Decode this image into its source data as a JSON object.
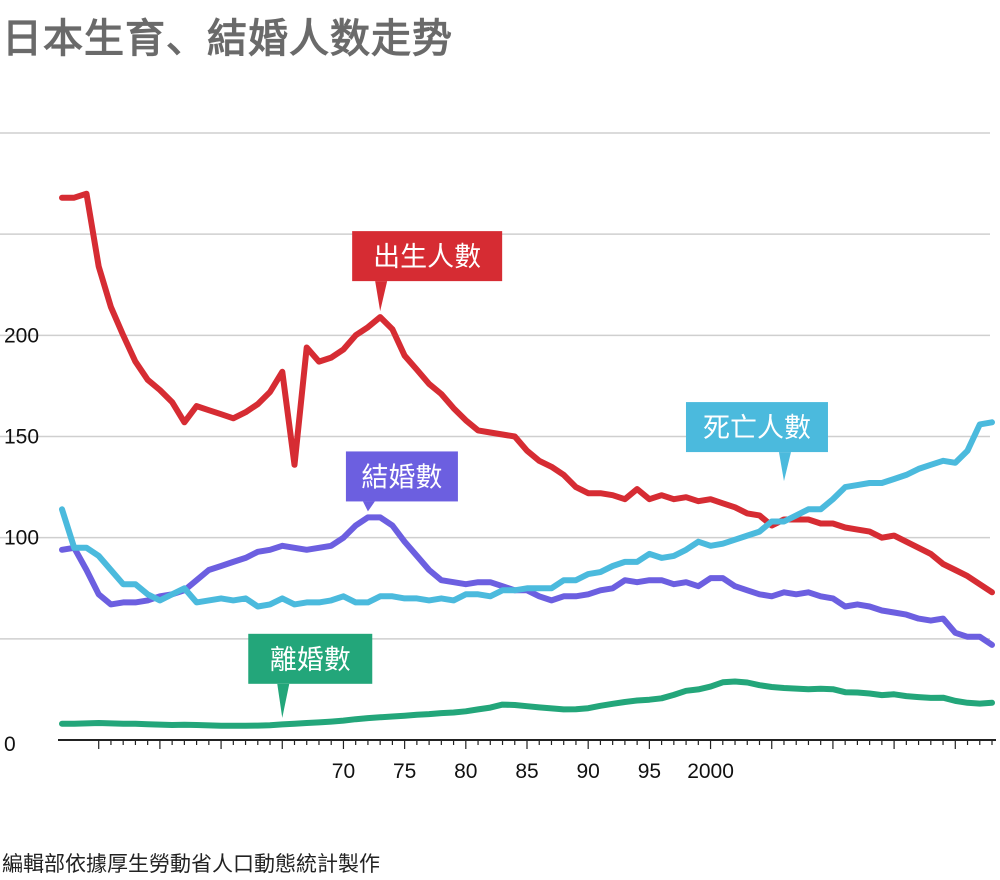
{
  "title": "日本生育、結婚人数走势",
  "source_note": "編輯部依據厚生勞動省人口動態統計製作",
  "chart_data": {
    "type": "line",
    "title": "日本生育、結婚人数走势",
    "xlabel": "",
    "ylabel": "",
    "xlim": [
      1947,
      2023
    ],
    "ylim": [
      0,
      300
    ],
    "y_ticks": [
      0,
      100,
      150,
      200
    ],
    "y_gridlines": [
      50,
      100,
      150,
      200,
      250,
      300
    ],
    "x_ticks": [
      {
        "value": 1950,
        "label": ""
      },
      {
        "value": 1955,
        "label": ""
      },
      {
        "value": 1960,
        "label": ""
      },
      {
        "value": 1965,
        "label": ""
      },
      {
        "value": 1970,
        "label": "70"
      },
      {
        "value": 1975,
        "label": "75"
      },
      {
        "value": 1980,
        "label": "80"
      },
      {
        "value": 1985,
        "label": "85"
      },
      {
        "value": 1990,
        "label": "90"
      },
      {
        "value": 1995,
        "label": "95"
      },
      {
        "value": 2000,
        "label": "2000"
      },
      {
        "value": 2005,
        "label": ""
      },
      {
        "value": 2010,
        "label": ""
      },
      {
        "value": 2015,
        "label": ""
      },
      {
        "value": 2020,
        "label": ""
      }
    ],
    "grid": true,
    "legend": "inline-labels",
    "series": [
      {
        "name": "出生人數",
        "color": "#d62c33",
        "label_anchor": [
          1973,
          209
        ],
        "x": [
          1947,
          1948,
          1949,
          1950,
          1951,
          1952,
          1953,
          1954,
          1955,
          1956,
          1957,
          1958,
          1959,
          1960,
          1961,
          1962,
          1963,
          1964,
          1965,
          1966,
          1967,
          1968,
          1969,
          1970,
          1971,
          1972,
          1973,
          1974,
          1975,
          1976,
          1977,
          1978,
          1979,
          1980,
          1981,
          1982,
          1983,
          1984,
          1985,
          1986,
          1987,
          1988,
          1989,
          1990,
          1991,
          1992,
          1993,
          1994,
          1995,
          1996,
          1997,
          1998,
          1999,
          2000,
          2001,
          2002,
          2003,
          2004,
          2005,
          2006,
          2007,
          2008,
          2009,
          2010,
          2011,
          2012,
          2013,
          2014,
          2015,
          2016,
          2017,
          2018,
          2019,
          2020,
          2021,
          2022,
          2023
        ],
        "values": [
          268,
          268,
          270,
          234,
          214,
          200,
          187,
          178,
          173,
          167,
          157,
          165,
          163,
          161,
          159,
          162,
          166,
          172,
          182,
          136,
          194,
          187,
          189,
          193,
          200,
          204,
          209,
          203,
          190,
          183,
          176,
          171,
          164,
          158,
          153,
          152,
          151,
          150,
          143,
          138,
          135,
          131,
          125,
          122,
          122,
          121,
          119,
          124,
          119,
          121,
          119,
          120,
          118,
          119,
          117,
          115,
          112,
          111,
          106,
          109,
          109,
          109,
          107,
          107,
          105,
          104,
          103,
          100,
          101,
          98,
          95,
          92,
          87,
          84,
          81,
          77,
          73
        ]
      },
      {
        "name": "結婚數",
        "color": "#6c5fe0",
        "label_anchor": [
          1972,
          110
        ],
        "x": [
          1947,
          1948,
          1949,
          1950,
          1951,
          1952,
          1953,
          1954,
          1955,
          1956,
          1957,
          1958,
          1959,
          1960,
          1961,
          1962,
          1963,
          1964,
          1965,
          1966,
          1967,
          1968,
          1969,
          1970,
          1971,
          1972,
          1973,
          1974,
          1975,
          1976,
          1977,
          1978,
          1979,
          1980,
          1981,
          1982,
          1983,
          1984,
          1985,
          1986,
          1987,
          1988,
          1989,
          1990,
          1991,
          1992,
          1993,
          1994,
          1995,
          1996,
          1997,
          1998,
          1999,
          2000,
          2001,
          2002,
          2003,
          2004,
          2005,
          2006,
          2007,
          2008,
          2009,
          2010,
          2011,
          2012,
          2013,
          2014,
          2015,
          2016,
          2017,
          2018,
          2019,
          2020,
          2021,
          2022,
          2023
        ],
        "values": [
          94,
          95,
          84,
          72,
          67,
          68,
          68,
          69,
          71,
          72,
          74,
          79,
          84,
          86,
          88,
          90,
          93,
          94,
          96,
          95,
          94,
          95,
          96,
          100,
          106,
          110,
          110,
          106,
          98,
          91,
          84,
          79,
          78,
          77,
          78,
          78,
          76,
          74,
          74,
          71,
          69,
          71,
          71,
          72,
          74,
          75,
          79,
          78,
          79,
          79,
          77,
          78,
          76,
          80,
          80,
          76,
          74,
          72,
          71,
          73,
          72,
          73,
          71,
          70,
          66,
          67,
          66,
          64,
          63,
          62,
          60,
          59,
          60,
          53,
          51,
          51,
          47
        ]
      },
      {
        "name": "死亡人數",
        "color": "#4bbadd",
        "label_anchor": [
          2006,
          125
        ],
        "x": [
          1947,
          1948,
          1949,
          1950,
          1951,
          1952,
          1953,
          1954,
          1955,
          1956,
          1957,
          1958,
          1959,
          1960,
          1961,
          1962,
          1963,
          1964,
          1965,
          1966,
          1967,
          1968,
          1969,
          1970,
          1971,
          1972,
          1973,
          1974,
          1975,
          1976,
          1977,
          1978,
          1979,
          1980,
          1981,
          1982,
          1983,
          1984,
          1985,
          1986,
          1987,
          1988,
          1989,
          1990,
          1991,
          1992,
          1993,
          1994,
          1995,
          1996,
          1997,
          1998,
          1999,
          2000,
          2001,
          2002,
          2003,
          2004,
          2005,
          2006,
          2007,
          2008,
          2009,
          2010,
          2011,
          2012,
          2013,
          2014,
          2015,
          2016,
          2017,
          2018,
          2019,
          2020,
          2021,
          2022,
          2023
        ],
        "values": [
          114,
          95,
          95,
          91,
          84,
          77,
          77,
          72,
          69,
          72,
          75,
          68,
          69,
          70,
          69,
          70,
          66,
          67,
          70,
          67,
          68,
          68,
          69,
          71,
          68,
          68,
          71,
          71,
          70,
          70,
          69,
          70,
          69,
          72,
          72,
          71,
          74,
          74,
          75,
          75,
          75,
          79,
          79,
          82,
          83,
          86,
          88,
          88,
          92,
          90,
          91,
          94,
          98,
          96,
          97,
          99,
          101,
          103,
          108,
          108,
          111,
          114,
          114,
          119,
          125,
          126,
          127,
          127,
          129,
          131,
          134,
          136,
          138,
          137,
          143,
          156,
          157
        ]
      },
      {
        "name": "離婚數",
        "color": "#23a67a",
        "label_anchor": [
          1965,
          8
        ],
        "x": [
          1947,
          1948,
          1949,
          1950,
          1951,
          1952,
          1953,
          1954,
          1955,
          1956,
          1957,
          1958,
          1959,
          1960,
          1961,
          1962,
          1963,
          1964,
          1965,
          1966,
          1967,
          1968,
          1969,
          1970,
          1971,
          1972,
          1973,
          1974,
          1975,
          1976,
          1977,
          1978,
          1979,
          1980,
          1981,
          1982,
          1983,
          1984,
          1985,
          1986,
          1987,
          1988,
          1989,
          1990,
          1991,
          1992,
          1993,
          1994,
          1995,
          1996,
          1997,
          1998,
          1999,
          2000,
          2001,
          2002,
          2003,
          2004,
          2005,
          2006,
          2007,
          2008,
          2009,
          2010,
          2011,
          2012,
          2013,
          2014,
          2015,
          2016,
          2017,
          2018,
          2019,
          2020,
          2021,
          2022,
          2023
        ],
        "values": [
          8,
          8,
          8.2,
          8.4,
          8.2,
          8,
          8,
          7.8,
          7.6,
          7.4,
          7.5,
          7.4,
          7.2,
          7,
          7,
          7,
          7.1,
          7.3,
          7.7,
          8,
          8.4,
          8.7,
          9.1,
          9.6,
          10.3,
          10.8,
          11.2,
          11.6,
          12,
          12.5,
          12.8,
          13.3,
          13.6,
          14.2,
          15.1,
          16,
          17.5,
          17.3,
          16.7,
          16.1,
          15.6,
          15.1,
          15.2,
          15.7,
          16.9,
          17.9,
          18.8,
          19.5,
          19.9,
          20.6,
          22.3,
          24.3,
          25,
          26.4,
          28.5,
          28.9,
          28.4,
          27.1,
          26.2,
          25.7,
          25.4,
          25.1,
          25.3,
          25.1,
          23.6,
          23.5,
          23,
          22.2,
          22.6,
          21.7,
          21.2,
          20.8,
          20.9,
          19.3,
          18.4,
          18,
          18.4
        ]
      }
    ]
  }
}
